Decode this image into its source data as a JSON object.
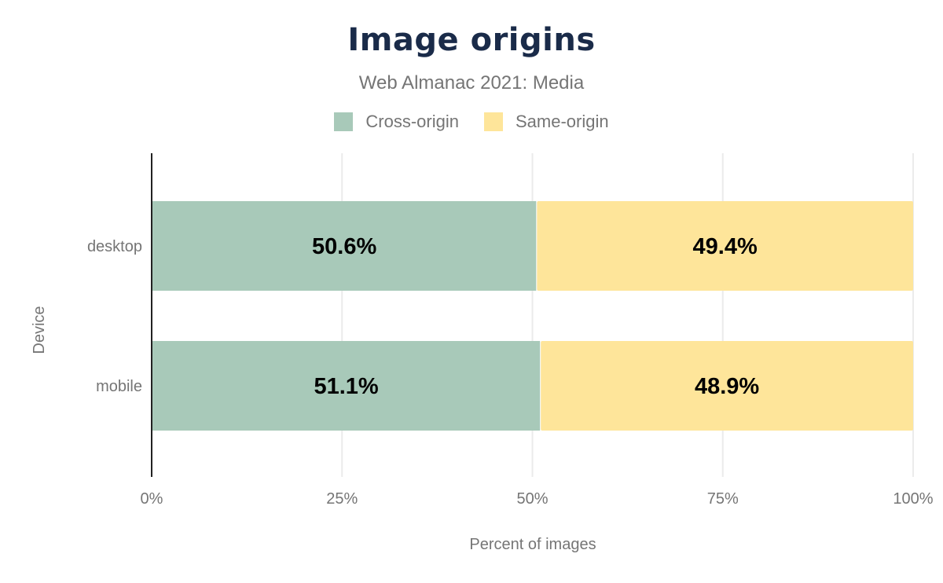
{
  "chart_data": {
    "type": "bar",
    "orientation": "horizontal",
    "stacked": true,
    "title": "Image origins",
    "subtitle": "Web Almanac 2021: Media",
    "xlabel": "Percent of images",
    "ylabel": "Device",
    "categories": [
      "desktop",
      "mobile"
    ],
    "series": [
      {
        "name": "Cross-origin",
        "color": "#a8c9b9",
        "values": [
          50.6,
          51.1
        ],
        "labels": [
          "50.6%",
          "51.1%"
        ]
      },
      {
        "name": "Same-origin",
        "color": "#fee59a",
        "values": [
          49.4,
          48.9
        ],
        "labels": [
          "49.4%",
          "48.9%"
        ]
      }
    ],
    "xlim": [
      0,
      100
    ],
    "xticks": [
      0,
      25,
      50,
      75,
      100
    ],
    "xtick_labels": [
      "0%",
      "25%",
      "50%",
      "75%",
      "100%"
    ],
    "grid": true,
    "legend": "top"
  }
}
